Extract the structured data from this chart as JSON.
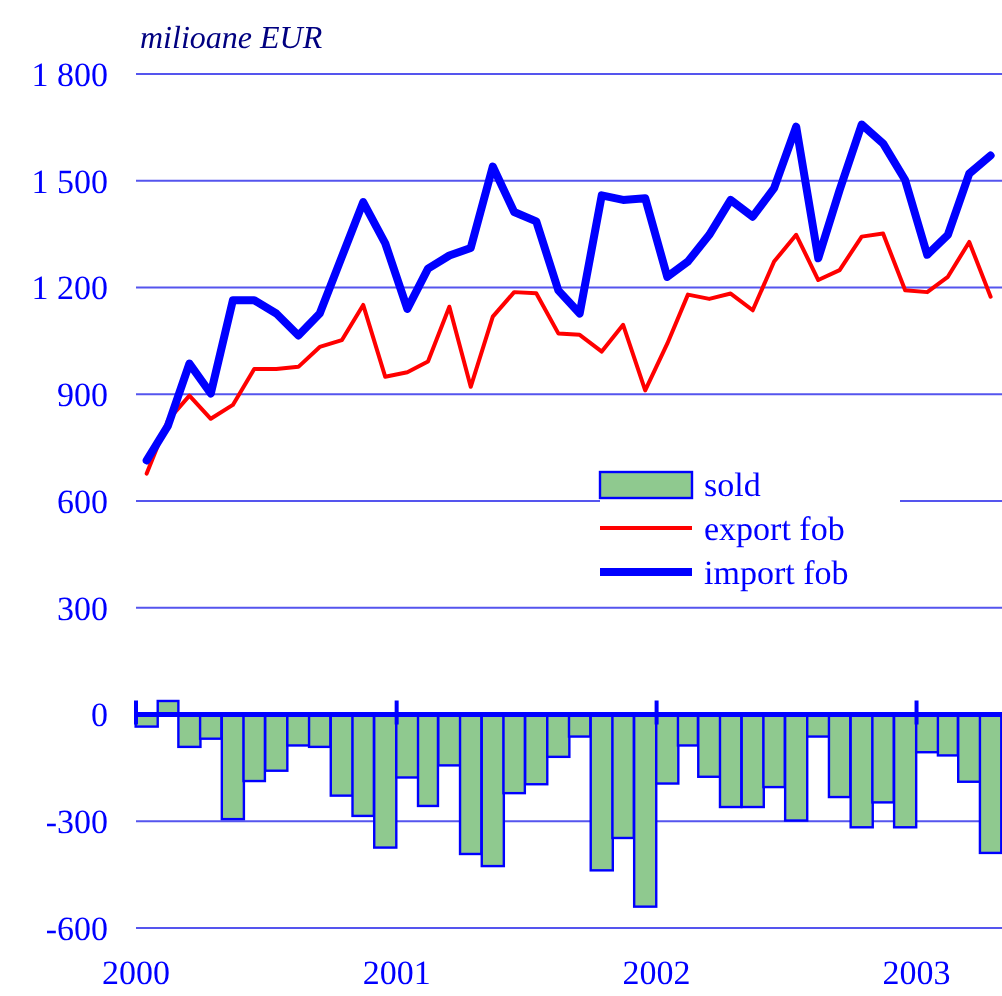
{
  "chart_data": {
    "type": "line",
    "ylabel": "milioane EUR",
    "x": [
      "2000-01-16",
      "2000-02-15",
      "2000-03-16",
      "2000-04-15",
      "2000-05-16",
      "2000-06-15",
      "2000-07-16",
      "2000-08-16",
      "2000-09-15",
      "2000-10-16",
      "2000-11-15",
      "2000-12-16",
      "2001-01-16",
      "2001-02-14",
      "2001-03-16",
      "2001-04-15",
      "2001-05-16",
      "2001-06-15",
      "2001-07-16",
      "2001-08-16",
      "2001-09-15",
      "2001-10-16",
      "2001-11-15",
      "2001-12-16",
      "2002-01-16",
      "2002-02-14",
      "2002-03-16",
      "2002-04-15",
      "2002-05-16",
      "2002-06-15",
      "2002-07-16",
      "2002-08-16",
      "2002-09-15",
      "2002-10-16",
      "2002-11-15",
      "2002-12-16",
      "2003-01-16",
      "2003-02-14",
      "2003-03-16",
      "2003-04-15"
    ],
    "series": [
      {
        "name": "sold",
        "type": "bar",
        "color": "#8fc98f",
        "values": [
          -34,
          38,
          -91,
          -68,
          -294,
          -187,
          -158,
          -87,
          -91,
          -228,
          -285,
          -374,
          -177,
          -257,
          -143,
          -392,
          -426,
          -221,
          -196,
          -119,
          -62,
          -438,
          -347,
          -540,
          -194,
          -87,
          -175,
          -260,
          -260,
          -204,
          -298,
          -62,
          -232,
          -317,
          -247,
          -317,
          -106,
          -115,
          -189,
          -389
        ]
      },
      {
        "name": "export fob",
        "color": "#ff0000",
        "values": [
          677,
          827,
          896,
          831,
          870,
          971,
          971,
          977,
          1033,
          1052,
          1151,
          949,
          962,
          992,
          1146,
          921,
          1118,
          1187,
          1184,
          1071,
          1067,
          1020,
          1095,
          911,
          1042,
          1180,
          1168,
          1183,
          1136,
          1273,
          1348,
          1221,
          1249,
          1343,
          1352,
          1192,
          1187,
          1230,
          1328,
          1174
        ]
      },
      {
        "name": "import fob",
        "color": "#0000ff",
        "values": [
          714,
          812,
          986,
          902,
          1164,
          1164,
          1127,
          1065,
          1127,
          1286,
          1440,
          1324,
          1140,
          1253,
          1290,
          1311,
          1540,
          1412,
          1386,
          1192,
          1127,
          1459,
          1446,
          1451,
          1230,
          1273,
          1348,
          1446,
          1399,
          1479,
          1652,
          1282,
          1474,
          1658,
          1605,
          1502,
          1292,
          1348,
          1520,
          1571
        ]
      }
    ],
    "xlim": [
      "2000-01-01",
      "2003-05-01"
    ],
    "xticks": [
      {
        "value": "2000",
        "label": "2000"
      },
      {
        "value": "2001",
        "label": "2001"
      },
      {
        "value": "2002",
        "label": "2002"
      },
      {
        "value": "2003",
        "label": "2003"
      }
    ],
    "ylim": [
      -600,
      1800
    ],
    "yticks": [
      {
        "value": -600,
        "label": "-600"
      },
      {
        "value": -300,
        "label": "-300"
      },
      0,
      300,
      600,
      900,
      {
        "value": 1200,
        "label": "1 200"
      },
      {
        "value": 1500,
        "label": "1 500"
      },
      {
        "value": 1800,
        "label": "1 800"
      }
    ],
    "ref_lines": [
      {
        "axis": "y",
        "value": 0,
        "color": "#0000ff"
      }
    ],
    "grid": "y",
    "legend": "center",
    "line_style": "solid"
  }
}
